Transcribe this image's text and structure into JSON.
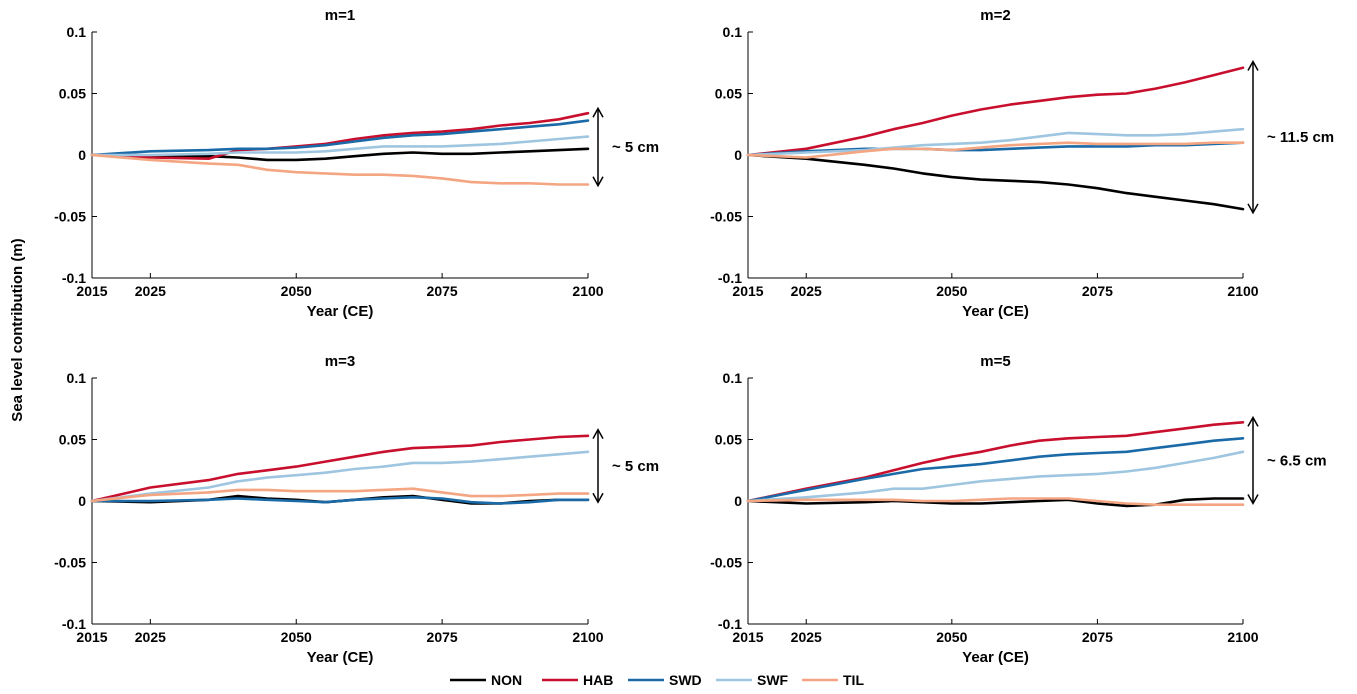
{
  "figure": {
    "ylabel": "Sea level contribution (m)",
    "colors": {
      "NON": "#000000",
      "HAB": "#c8102e",
      "SWD": "#1a6aa8",
      "SWF": "#9fc6e0",
      "TIL": "#f4a582"
    }
  },
  "legend": {
    "placement": "bottom-center",
    "entries": [
      "NON",
      "HAB",
      "SWD",
      "SWF",
      "TIL"
    ]
  },
  "chart_data": [
    {
      "type": "line",
      "title": "m=1",
      "xlabel": "Year (CE)",
      "xlim": [
        2015,
        2100
      ],
      "ylim": [
        -0.1,
        0.1
      ],
      "xticks": [
        "2015",
        "2025",
        "2050",
        "2075",
        "2100"
      ],
      "yticks": [
        "-0.1",
        "-0.05",
        "0",
        "0.05",
        "0.1"
      ],
      "annotation": {
        "text": "~ 5 cm",
        "y_range": [
          -0.025,
          0.038
        ]
      },
      "series": [
        {
          "name": "NON",
          "x": [
            2015,
            2025,
            2035,
            2040,
            2045,
            2050,
            2055,
            2060,
            2065,
            2070,
            2075,
            2080,
            2085,
            2090,
            2095,
            2100
          ],
          "values": [
            0,
            -0.001,
            -0.001,
            -0.002,
            -0.004,
            -0.004,
            -0.003,
            -0.001,
            0.001,
            0.002,
            0.001,
            0.001,
            0.002,
            0.003,
            0.004,
            0.005
          ]
        },
        {
          "name": "HAB",
          "x": [
            2015,
            2025,
            2035,
            2040,
            2045,
            2050,
            2055,
            2060,
            2065,
            2070,
            2075,
            2080,
            2085,
            2090,
            2095,
            2100
          ],
          "values": [
            0,
            -0.002,
            -0.003,
            0.004,
            0.005,
            0.007,
            0.009,
            0.013,
            0.016,
            0.018,
            0.019,
            0.021,
            0.024,
            0.026,
            0.029,
            0.034
          ]
        },
        {
          "name": "SWD",
          "x": [
            2015,
            2025,
            2035,
            2040,
            2045,
            2050,
            2055,
            2060,
            2065,
            2070,
            2075,
            2080,
            2085,
            2090,
            2095,
            2100
          ],
          "values": [
            0,
            0.003,
            0.004,
            0.005,
            0.005,
            0.006,
            0.008,
            0.011,
            0.014,
            0.016,
            0.017,
            0.019,
            0.021,
            0.023,
            0.025,
            0.028
          ]
        },
        {
          "name": "SWF",
          "x": [
            2015,
            2025,
            2035,
            2040,
            2045,
            2050,
            2055,
            2060,
            2065,
            2070,
            2075,
            2080,
            2085,
            2090,
            2095,
            2100
          ],
          "values": [
            0,
            0,
            0.001,
            0.002,
            0.002,
            0.002,
            0.003,
            0.005,
            0.007,
            0.007,
            0.007,
            0.008,
            0.009,
            0.011,
            0.013,
            0.015
          ]
        },
        {
          "name": "TIL",
          "x": [
            2015,
            2025,
            2035,
            2040,
            2045,
            2050,
            2055,
            2060,
            2065,
            2070,
            2075,
            2080,
            2085,
            2090,
            2095,
            2100
          ],
          "values": [
            0,
            -0.004,
            -0.007,
            -0.008,
            -0.012,
            -0.014,
            -0.015,
            -0.016,
            -0.016,
            -0.017,
            -0.019,
            -0.022,
            -0.023,
            -0.023,
            -0.024,
            -0.024
          ]
        }
      ]
    },
    {
      "type": "line",
      "title": "m=2",
      "xlabel": "Year (CE)",
      "xlim": [
        2015,
        2100
      ],
      "ylim": [
        -0.1,
        0.1
      ],
      "xticks": [
        "2015",
        "2025",
        "2050",
        "2075",
        "2100"
      ],
      "yticks": [
        "-0.1",
        "-0.05",
        "0",
        "0.05",
        "0.1"
      ],
      "annotation": {
        "text": "~ 11.5 cm",
        "y_range": [
          -0.047,
          0.076
        ]
      },
      "series": [
        {
          "name": "NON",
          "x": [
            2015,
            2025,
            2035,
            2040,
            2045,
            2050,
            2055,
            2060,
            2065,
            2070,
            2075,
            2080,
            2085,
            2090,
            2095,
            2100
          ],
          "values": [
            0,
            -0.003,
            -0.008,
            -0.011,
            -0.015,
            -0.018,
            -0.02,
            -0.021,
            -0.022,
            -0.024,
            -0.027,
            -0.031,
            -0.034,
            -0.037,
            -0.04,
            -0.044
          ]
        },
        {
          "name": "HAB",
          "x": [
            2015,
            2025,
            2035,
            2040,
            2045,
            2050,
            2055,
            2060,
            2065,
            2070,
            2075,
            2080,
            2085,
            2090,
            2095,
            2100
          ],
          "values": [
            0,
            0.005,
            0.015,
            0.021,
            0.026,
            0.032,
            0.037,
            0.041,
            0.044,
            0.047,
            0.049,
            0.05,
            0.054,
            0.059,
            0.065,
            0.071
          ]
        },
        {
          "name": "SWD",
          "x": [
            2015,
            2025,
            2035,
            2040,
            2045,
            2050,
            2055,
            2060,
            2065,
            2070,
            2075,
            2080,
            2085,
            2090,
            2095,
            2100
          ],
          "values": [
            0,
            0.003,
            0.005,
            0.005,
            0.005,
            0.004,
            0.004,
            0.005,
            0.006,
            0.007,
            0.007,
            0.007,
            0.008,
            0.008,
            0.009,
            0.01
          ]
        },
        {
          "name": "SWF",
          "x": [
            2015,
            2025,
            2035,
            2040,
            2045,
            2050,
            2055,
            2060,
            2065,
            2070,
            2075,
            2080,
            2085,
            2090,
            2095,
            2100
          ],
          "values": [
            0,
            0.002,
            0.004,
            0.006,
            0.008,
            0.009,
            0.01,
            0.012,
            0.015,
            0.018,
            0.017,
            0.016,
            0.016,
            0.017,
            0.019,
            0.021
          ]
        },
        {
          "name": "TIL",
          "x": [
            2015,
            2025,
            2035,
            2040,
            2045,
            2050,
            2055,
            2060,
            2065,
            2070,
            2075,
            2080,
            2085,
            2090,
            2095,
            2100
          ],
          "values": [
            0,
            -0.002,
            0.003,
            0.005,
            0.005,
            0.004,
            0.006,
            0.008,
            0.009,
            0.01,
            0.009,
            0.009,
            0.009,
            0.009,
            0.01,
            0.01
          ]
        }
      ]
    },
    {
      "type": "line",
      "title": "m=3",
      "xlabel": "Year (CE)",
      "xlim": [
        2015,
        2100
      ],
      "ylim": [
        -0.1,
        0.1
      ],
      "xticks": [
        "2015",
        "2025",
        "2050",
        "2075",
        "2100"
      ],
      "yticks": [
        "-0.1",
        "-0.05",
        "0",
        "0.05",
        "0.1"
      ],
      "annotation": {
        "text": "~ 5 cm",
        "y_range": [
          -0.001,
          0.058
        ]
      },
      "series": [
        {
          "name": "NON",
          "x": [
            2015,
            2025,
            2035,
            2040,
            2045,
            2050,
            2055,
            2060,
            2065,
            2070,
            2075,
            2080,
            2085,
            2090,
            2095,
            2100
          ],
          "values": [
            0,
            -0.001,
            0.001,
            0.004,
            0.002,
            0.001,
            -0.001,
            0.001,
            0.003,
            0.004,
            0.001,
            -0.002,
            -0.002,
            0,
            0.001,
            0.001
          ]
        },
        {
          "name": "HAB",
          "x": [
            2015,
            2025,
            2035,
            2040,
            2045,
            2050,
            2055,
            2060,
            2065,
            2070,
            2075,
            2080,
            2085,
            2090,
            2095,
            2100
          ],
          "values": [
            0,
            0.011,
            0.017,
            0.022,
            0.025,
            0.028,
            0.032,
            0.036,
            0.04,
            0.043,
            0.044,
            0.045,
            0.048,
            0.05,
            0.052,
            0.053
          ]
        },
        {
          "name": "SWD",
          "x": [
            2015,
            2025,
            2035,
            2040,
            2045,
            2050,
            2055,
            2060,
            2065,
            2070,
            2075,
            2080,
            2085,
            2090,
            2095,
            2100
          ],
          "values": [
            0,
            0,
            0.001,
            0.002,
            0.001,
            0,
            -0.001,
            0.001,
            0.002,
            0.003,
            0.002,
            -0.001,
            -0.002,
            -0.001,
            0.001,
            0.001
          ]
        },
        {
          "name": "SWF",
          "x": [
            2015,
            2025,
            2035,
            2040,
            2045,
            2050,
            2055,
            2060,
            2065,
            2070,
            2075,
            2080,
            2085,
            2090,
            2095,
            2100
          ],
          "values": [
            0,
            0.006,
            0.011,
            0.016,
            0.019,
            0.021,
            0.023,
            0.026,
            0.028,
            0.031,
            0.031,
            0.032,
            0.034,
            0.036,
            0.038,
            0.04
          ]
        },
        {
          "name": "TIL",
          "x": [
            2015,
            2025,
            2035,
            2040,
            2045,
            2050,
            2055,
            2060,
            2065,
            2070,
            2075,
            2080,
            2085,
            2090,
            2095,
            2100
          ],
          "values": [
            0,
            0.005,
            0.007,
            0.009,
            0.009,
            0.008,
            0.008,
            0.008,
            0.009,
            0.01,
            0.007,
            0.004,
            0.004,
            0.005,
            0.006,
            0.006
          ]
        }
      ]
    },
    {
      "type": "line",
      "title": "m=5",
      "xlabel": "Year (CE)",
      "xlim": [
        2015,
        2100
      ],
      "ylim": [
        -0.1,
        0.1
      ],
      "xticks": [
        "2015",
        "2025",
        "2050",
        "2075",
        "2100"
      ],
      "yticks": [
        "-0.1",
        "-0.05",
        "0",
        "0.05",
        "0.1"
      ],
      "annotation": {
        "text": "~ 6.5 cm",
        "y_range": [
          -0.002,
          0.068
        ]
      },
      "series": [
        {
          "name": "NON",
          "x": [
            2015,
            2025,
            2035,
            2040,
            2045,
            2050,
            2055,
            2060,
            2065,
            2070,
            2075,
            2080,
            2085,
            2090,
            2095,
            2100
          ],
          "values": [
            0,
            -0.002,
            -0.001,
            0,
            -0.001,
            -0.002,
            -0.002,
            -0.001,
            0,
            0.001,
            -0.002,
            -0.004,
            -0.003,
            0.001,
            0.002,
            0.002
          ]
        },
        {
          "name": "HAB",
          "x": [
            2015,
            2025,
            2035,
            2040,
            2045,
            2050,
            2055,
            2060,
            2065,
            2070,
            2075,
            2080,
            2085,
            2090,
            2095,
            2100
          ],
          "values": [
            0,
            0.01,
            0.019,
            0.025,
            0.031,
            0.036,
            0.04,
            0.045,
            0.049,
            0.051,
            0.052,
            0.053,
            0.056,
            0.059,
            0.062,
            0.064
          ]
        },
        {
          "name": "SWD",
          "x": [
            2015,
            2025,
            2035,
            2040,
            2045,
            2050,
            2055,
            2060,
            2065,
            2070,
            2075,
            2080,
            2085,
            2090,
            2095,
            2100
          ],
          "values": [
            0,
            0.009,
            0.018,
            0.022,
            0.026,
            0.028,
            0.03,
            0.033,
            0.036,
            0.038,
            0.039,
            0.04,
            0.043,
            0.046,
            0.049,
            0.051
          ]
        },
        {
          "name": "SWF",
          "x": [
            2015,
            2025,
            2035,
            2040,
            2045,
            2050,
            2055,
            2060,
            2065,
            2070,
            2075,
            2080,
            2085,
            2090,
            2095,
            2100
          ],
          "values": [
            0,
            0.003,
            0.007,
            0.01,
            0.01,
            0.013,
            0.016,
            0.018,
            0.02,
            0.021,
            0.022,
            0.024,
            0.027,
            0.031,
            0.035,
            0.04
          ]
        },
        {
          "name": "TIL",
          "x": [
            2015,
            2025,
            2035,
            2040,
            2045,
            2050,
            2055,
            2060,
            2065,
            2070,
            2075,
            2080,
            2085,
            2090,
            2095,
            2100
          ],
          "values": [
            0,
            0.001,
            0.001,
            0.001,
            0,
            0,
            0.001,
            0.002,
            0.002,
            0.002,
            0,
            -0.002,
            -0.003,
            -0.003,
            -0.003,
            -0.003
          ]
        }
      ]
    }
  ]
}
